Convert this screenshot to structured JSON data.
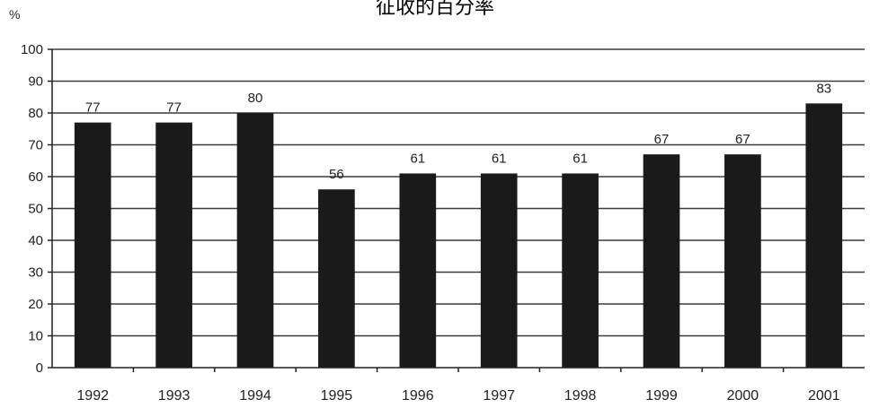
{
  "chart_data": {
    "type": "bar",
    "title": "征收的百分率",
    "ylabel": "%",
    "xlabel": "",
    "categories": [
      "1992",
      "1993",
      "1994",
      "1995",
      "1996",
      "1997",
      "1998",
      "1999",
      "2000",
      "2001"
    ],
    "values": [
      77,
      77,
      80,
      56,
      61,
      61,
      61,
      67,
      67,
      83
    ],
    "data_labels": [
      "77",
      "77",
      "80",
      "56",
      "61",
      "61",
      "61",
      "67",
      "67",
      "83"
    ],
    "ylim": [
      0,
      100
    ],
    "yticks": [
      "0",
      "10",
      "20",
      "30",
      "40",
      "50",
      "60",
      "70",
      "80",
      "90",
      "100"
    ],
    "grid": true,
    "legend": "none",
    "bar_color": "#1a1a1a"
  }
}
